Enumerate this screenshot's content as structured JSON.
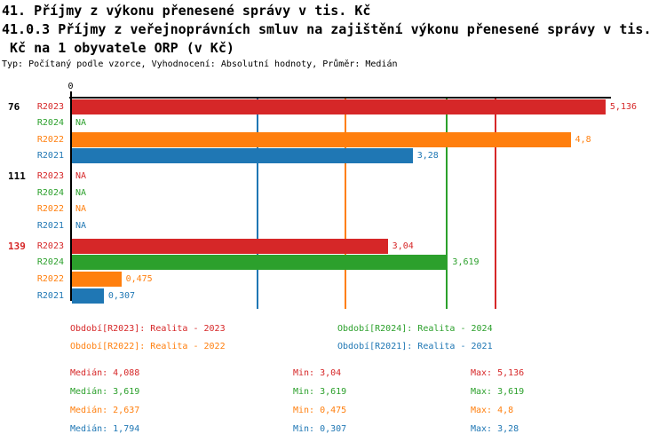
{
  "title": {
    "line1": "41. Příjmy z výkonu přenesené správy v tis. Kč",
    "line2": "41.0.3 Příjmy z veřejnoprávních smluv na zajištění výkonu přenesené správy v tis.",
    "line3": " Kč na 1 obyvatele ORP (v Kč)",
    "subtitle": "Typ: Počítaný podle vzorce, Vyhodnocení: Absolutní hodnoty, Průměr: Medián"
  },
  "chart_data": {
    "type": "bar",
    "orientation": "horizontal",
    "axis": {
      "zero_tick_label": "0",
      "value_min": 0,
      "value_max_shown": 5.2,
      "decimal_separator": ","
    },
    "series": [
      {
        "id": "R2023",
        "color": "#d62728",
        "legend_label": "Období[R2023]: Realita - 2023"
      },
      {
        "id": "R2024",
        "color": "#2ca02c",
        "legend_label": "Období[R2024]: Realita - 2024"
      },
      {
        "id": "R2022",
        "color": "#ff7f0e",
        "legend_label": "Období[R2022]: Realita - 2022"
      },
      {
        "id": "R2021",
        "color": "#1f77b4",
        "legend_label": "Období[R2021]: Realita - 2021"
      }
    ],
    "groups": [
      {
        "label": "76",
        "label_color": "#000000",
        "bars": [
          {
            "series": "R2023",
            "value": 5.136,
            "value_label": "5,136"
          },
          {
            "series": "R2024",
            "value": null,
            "value_label": "NA"
          },
          {
            "series": "R2022",
            "value": 4.8,
            "value_label": "4,8"
          },
          {
            "series": "R2021",
            "value": 3.28,
            "value_label": "3,28"
          }
        ]
      },
      {
        "label": "111",
        "label_color": "#000000",
        "bars": [
          {
            "series": "R2023",
            "value": null,
            "value_label": "NA"
          },
          {
            "series": "R2024",
            "value": null,
            "value_label": "NA"
          },
          {
            "series": "R2022",
            "value": null,
            "value_label": "NA"
          },
          {
            "series": "R2021",
            "value": null,
            "value_label": "NA"
          }
        ]
      },
      {
        "label": "139",
        "label_color": "#d62728",
        "bars": [
          {
            "series": "R2023",
            "value": 3.04,
            "value_label": "3,04"
          },
          {
            "series": "R2024",
            "value": 3.619,
            "value_label": "3,619"
          },
          {
            "series": "R2022",
            "value": 0.475,
            "value_label": "0,475"
          },
          {
            "series": "R2021",
            "value": 0.307,
            "value_label": "0,307"
          }
        ]
      }
    ],
    "median_lines": [
      {
        "series": "R2023",
        "value": 4.088
      },
      {
        "series": "R2024",
        "value": 3.619
      },
      {
        "series": "R2022",
        "value": 2.637
      },
      {
        "series": "R2021",
        "value": 1.794
      }
    ],
    "stats": {
      "labels": {
        "median": "Medián",
        "min": "Min",
        "max": "Max"
      },
      "rows": [
        {
          "series": "R2023",
          "median": "4,088",
          "min": "3,04",
          "max": "5,136"
        },
        {
          "series": "R2024",
          "median": "3,619",
          "min": "3,619",
          "max": "3,619"
        },
        {
          "series": "R2022",
          "median": "2,637",
          "min": "0,475",
          "max": "4,8"
        },
        {
          "series": "R2021",
          "median": "1,794",
          "min": "0,307",
          "max": "3,28"
        }
      ]
    }
  }
}
